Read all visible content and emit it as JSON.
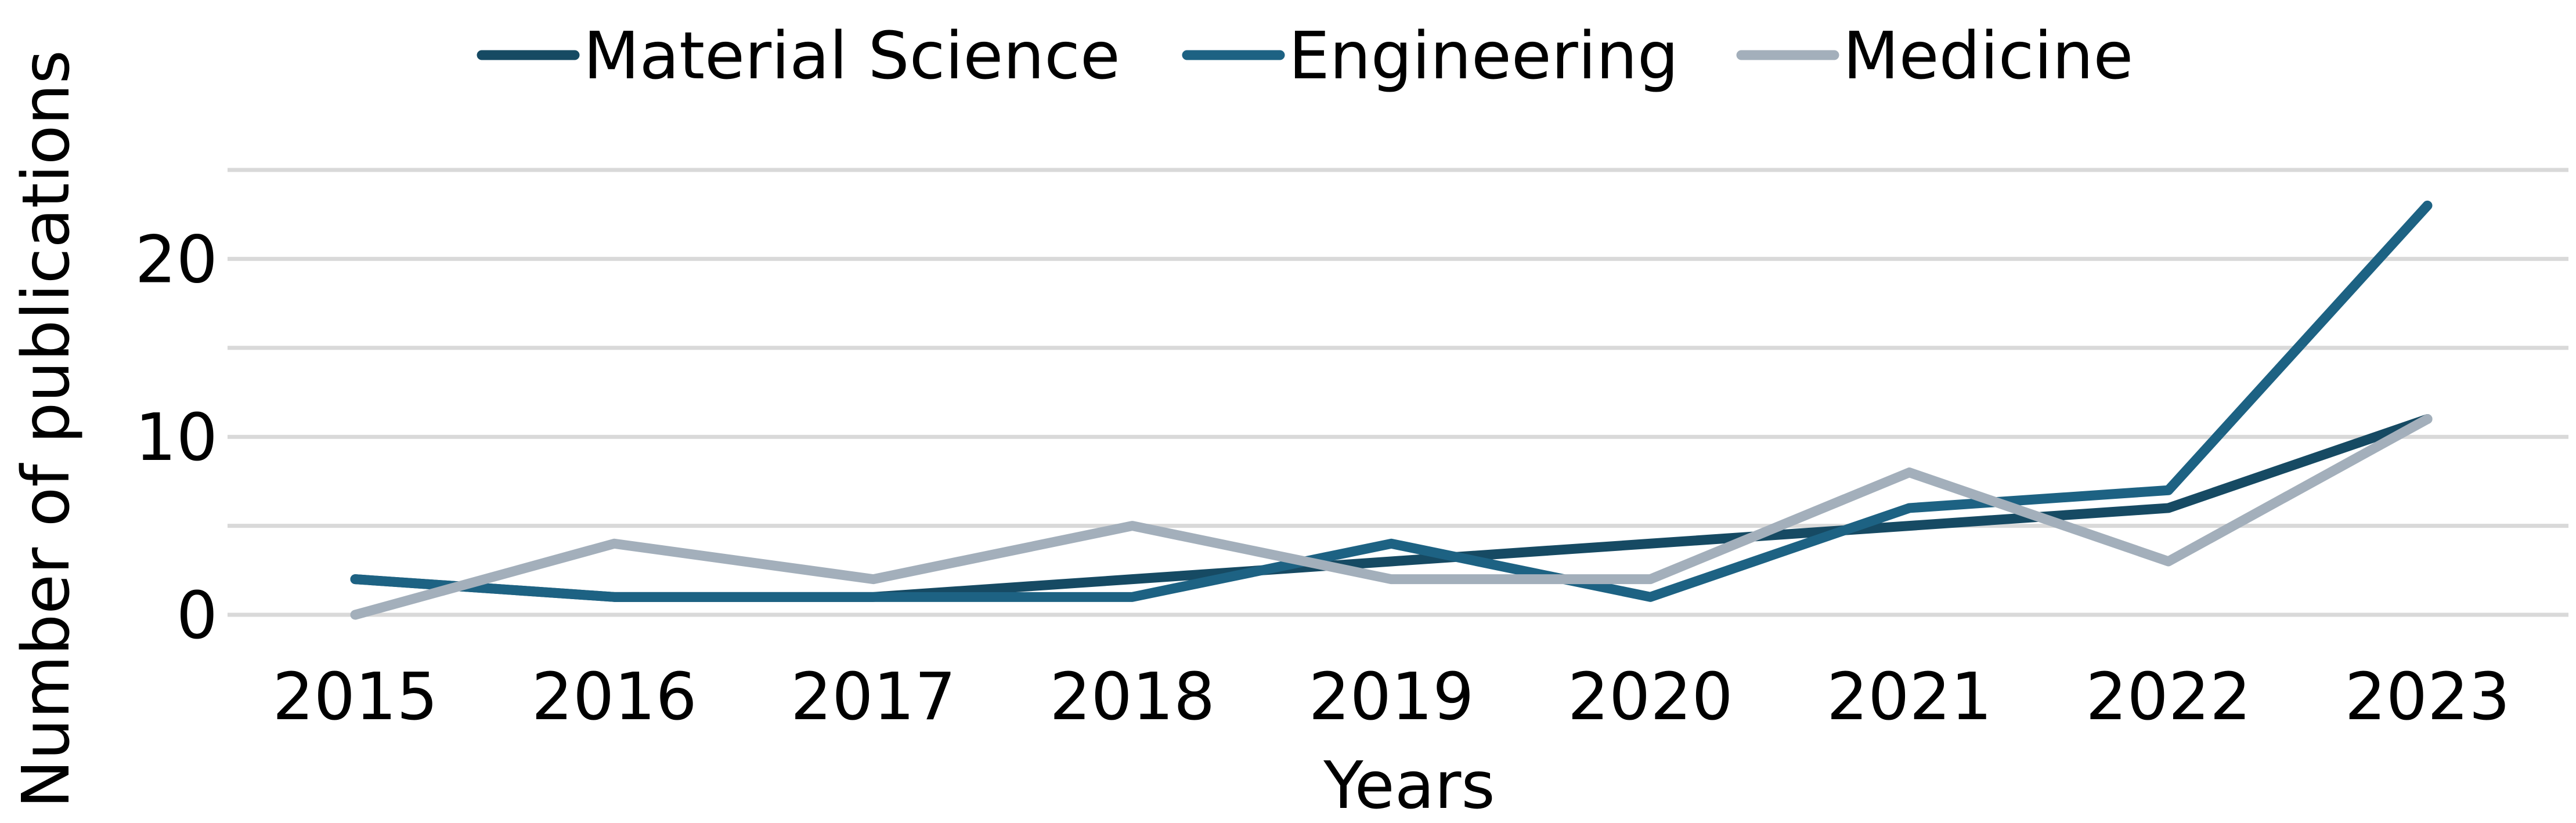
{
  "chart_data": {
    "type": "line",
    "title": "",
    "xlabel": "Years",
    "ylabel": "Number of publications",
    "categories": [
      "2015",
      "2016",
      "2017",
      "2018",
      "2019",
      "2020",
      "2021",
      "2022",
      "2023"
    ],
    "series": [
      {
        "name": "Material Science",
        "color": "#164a63",
        "values": [
          2,
          1,
          1,
          2,
          3,
          4,
          5,
          6,
          11
        ]
      },
      {
        "name": "Engineering",
        "color": "#1d6283",
        "values": [
          2,
          1,
          1,
          1,
          4,
          1,
          6,
          7,
          23
        ]
      },
      {
        "name": "Medicine",
        "color": "#a3afbb",
        "values": [
          0,
          4,
          2,
          5,
          2,
          2,
          8,
          3,
          11
        ]
      }
    ],
    "ylim": [
      0,
      25
    ],
    "gridline_values": [
      0,
      5,
      10,
      15,
      20,
      25
    ],
    "y_tick_labels": [
      "0",
      "10",
      "20"
    ],
    "legend_position": "top",
    "grid": true
  }
}
